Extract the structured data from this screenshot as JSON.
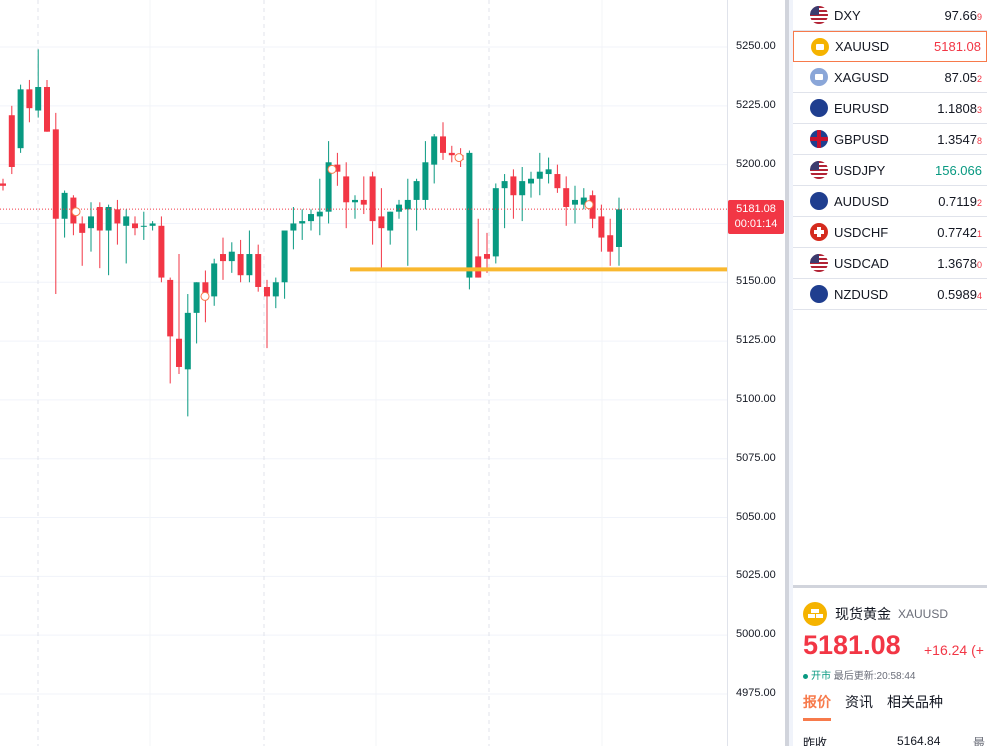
{
  "price_axis": {
    "ticks": [
      "5250.00",
      "5225.00",
      "5200.00",
      "5175.00",
      "5150.00",
      "5125.00",
      "5100.00",
      "5075.00",
      "5050.00",
      "5025.00",
      "5000.00",
      "4975.00"
    ]
  },
  "last_price": {
    "price": "5181.08",
    "countdown": "00:01:14"
  },
  "support_level": 5155.5,
  "colors": {
    "up": "#089981",
    "down": "#f23645",
    "support": "#f9b82f",
    "accent": "#f77a4b"
  },
  "chart_data": {
    "type": "candlestick",
    "ylim": [
      4962,
      5270
    ],
    "grid": true,
    "candles": [
      [
        5192,
        5194,
        5189,
        5191
      ],
      [
        5221,
        5225,
        5196,
        5199
      ],
      [
        5207,
        5234,
        5205,
        5232
      ],
      [
        5232,
        5236,
        5218,
        5224
      ],
      [
        5223,
        5249,
        5220,
        5233
      ],
      [
        5233,
        5236,
        5214,
        5214
      ],
      [
        5215,
        5222,
        5145,
        5177
      ],
      [
        5177,
        5189,
        5169,
        5188
      ],
      [
        5186,
        5187,
        5170,
        5175
      ],
      [
        5175,
        5178,
        5157,
        5171
      ],
      [
        5173,
        5184,
        5163,
        5178
      ],
      [
        5182,
        5184,
        5156,
        5172
      ],
      [
        5172,
        5183,
        5153,
        5182
      ],
      [
        5181,
        5185,
        5166,
        5175
      ],
      [
        5174,
        5181,
        5158,
        5178
      ],
      [
        5175,
        5178,
        5170,
        5173
      ],
      [
        5174,
        5180,
        5168,
        5174
      ],
      [
        5174,
        5176,
        5172,
        5175
      ],
      [
        5174,
        5178,
        5150,
        5152
      ],
      [
        5151,
        5152,
        5107,
        5127
      ],
      [
        5126,
        5162,
        5111,
        5114
      ],
      [
        5113,
        5145,
        5093,
        5137
      ],
      [
        5137,
        5150,
        5124,
        5150
      ],
      [
        5150,
        5155,
        5133,
        5144
      ],
      [
        5144,
        5160,
        5140,
        5158
      ],
      [
        5162,
        5169,
        5151,
        5159
      ],
      [
        5159,
        5167,
        5154,
        5163
      ],
      [
        5162,
        5168,
        5150,
        5153
      ],
      [
        5153,
        5172,
        5150,
        5162
      ],
      [
        5162,
        5166,
        5146,
        5148
      ],
      [
        5148,
        5151,
        5122,
        5144
      ],
      [
        5144,
        5152,
        5139,
        5150
      ],
      [
        5150,
        5171,
        5143,
        5172
      ],
      [
        5172,
        5182,
        5164,
        5175
      ],
      [
        5175,
        5181,
        5168,
        5176
      ],
      [
        5176,
        5181,
        5172,
        5179
      ],
      [
        5178,
        5194,
        5170,
        5180
      ],
      [
        5180,
        5210,
        5175,
        5201
      ],
      [
        5200,
        5205,
        5191,
        5197
      ],
      [
        5195,
        5201,
        5173,
        5184
      ],
      [
        5184,
        5187,
        5177,
        5185
      ],
      [
        5185,
        5195,
        5179,
        5183
      ],
      [
        5195,
        5197,
        5166,
        5176
      ],
      [
        5178,
        5190,
        5156,
        5173
      ],
      [
        5172,
        5180,
        5166,
        5180
      ],
      [
        5180,
        5185,
        5177,
        5183
      ],
      [
        5181,
        5194,
        5157,
        5185
      ],
      [
        5185,
        5194,
        5172,
        5193
      ],
      [
        5185,
        5210,
        5181,
        5201
      ],
      [
        5200,
        5213,
        5192,
        5212
      ],
      [
        5212,
        5218,
        5202,
        5205
      ],
      [
        5205,
        5208,
        5201,
        5204
      ],
      [
        5204,
        5207,
        5199,
        5202
      ],
      [
        5152,
        5206,
        5147,
        5205
      ],
      [
        5161,
        5177,
        5152,
        5152
      ],
      [
        5162,
        5171,
        5154,
        5160
      ],
      [
        5161,
        5192,
        5158,
        5190
      ],
      [
        5190,
        5196,
        5173,
        5193
      ],
      [
        5195,
        5198,
        5177,
        5187
      ],
      [
        5187,
        5199,
        5176,
        5193
      ],
      [
        5192,
        5197,
        5186,
        5194
      ],
      [
        5194,
        5205,
        5187,
        5197
      ],
      [
        5196,
        5203,
        5192,
        5198
      ],
      [
        5196,
        5200,
        5188,
        5190
      ],
      [
        5190,
        5195,
        5174,
        5182
      ],
      [
        5183,
        5191,
        5175,
        5185
      ],
      [
        5183,
        5190,
        5181,
        5186
      ],
      [
        5187,
        5189,
        5173,
        5177
      ],
      [
        5178,
        5183,
        5163,
        5169
      ],
      [
        5170,
        5177,
        5157,
        5163
      ],
      [
        5165,
        5186,
        5157,
        5181
      ]
    ]
  },
  "watchlist": [
    {
      "symbol": "DXY",
      "flag": "us",
      "value_main": "97.66",
      "value_last": "9",
      "trend": "neutral"
    },
    {
      "symbol": "XAUUSD",
      "flag": "gold",
      "value_main": "5181.08",
      "value_last": "",
      "trend": "down",
      "selected": true
    },
    {
      "symbol": "XAGUSD",
      "flag": "silver",
      "value_main": "87.05",
      "value_last": "2",
      "trend": "neutral"
    },
    {
      "symbol": "EURUSD",
      "flag": "eu",
      "value_main": "1.1808",
      "value_last": "3",
      "trend": "neutral"
    },
    {
      "symbol": "GBPUSD",
      "flag": "gb",
      "value_main": "1.3547",
      "value_last": "8",
      "trend": "neutral"
    },
    {
      "symbol": "USDJPY",
      "flag": "us",
      "value_main": "156.066",
      "value_last": "",
      "trend": "up"
    },
    {
      "symbol": "AUDUSD",
      "flag": "au",
      "value_main": "0.7119",
      "value_last": "2",
      "trend": "neutral"
    },
    {
      "symbol": "USDCHF",
      "flag": "ch",
      "value_main": "0.7742",
      "value_last": "1",
      "trend": "neutral"
    },
    {
      "symbol": "USDCAD",
      "flag": "us",
      "value_main": "1.3678",
      "value_last": "0",
      "trend": "neutral"
    },
    {
      "symbol": "NZDUSD",
      "flag": "nz",
      "value_main": "0.5989",
      "value_last": "4",
      "trend": "neutral"
    }
  ],
  "detail": {
    "name": "现货黄金",
    "symbol": "XAUUSD",
    "price": "5181.08",
    "change": "+16.24 (+",
    "status": "开市",
    "updated": "最后更新:20:58:44",
    "tabs": [
      "报价",
      "资讯",
      "相关品种"
    ],
    "row_label": "昨收",
    "row_value": "5164.84",
    "row_extra": "最"
  }
}
